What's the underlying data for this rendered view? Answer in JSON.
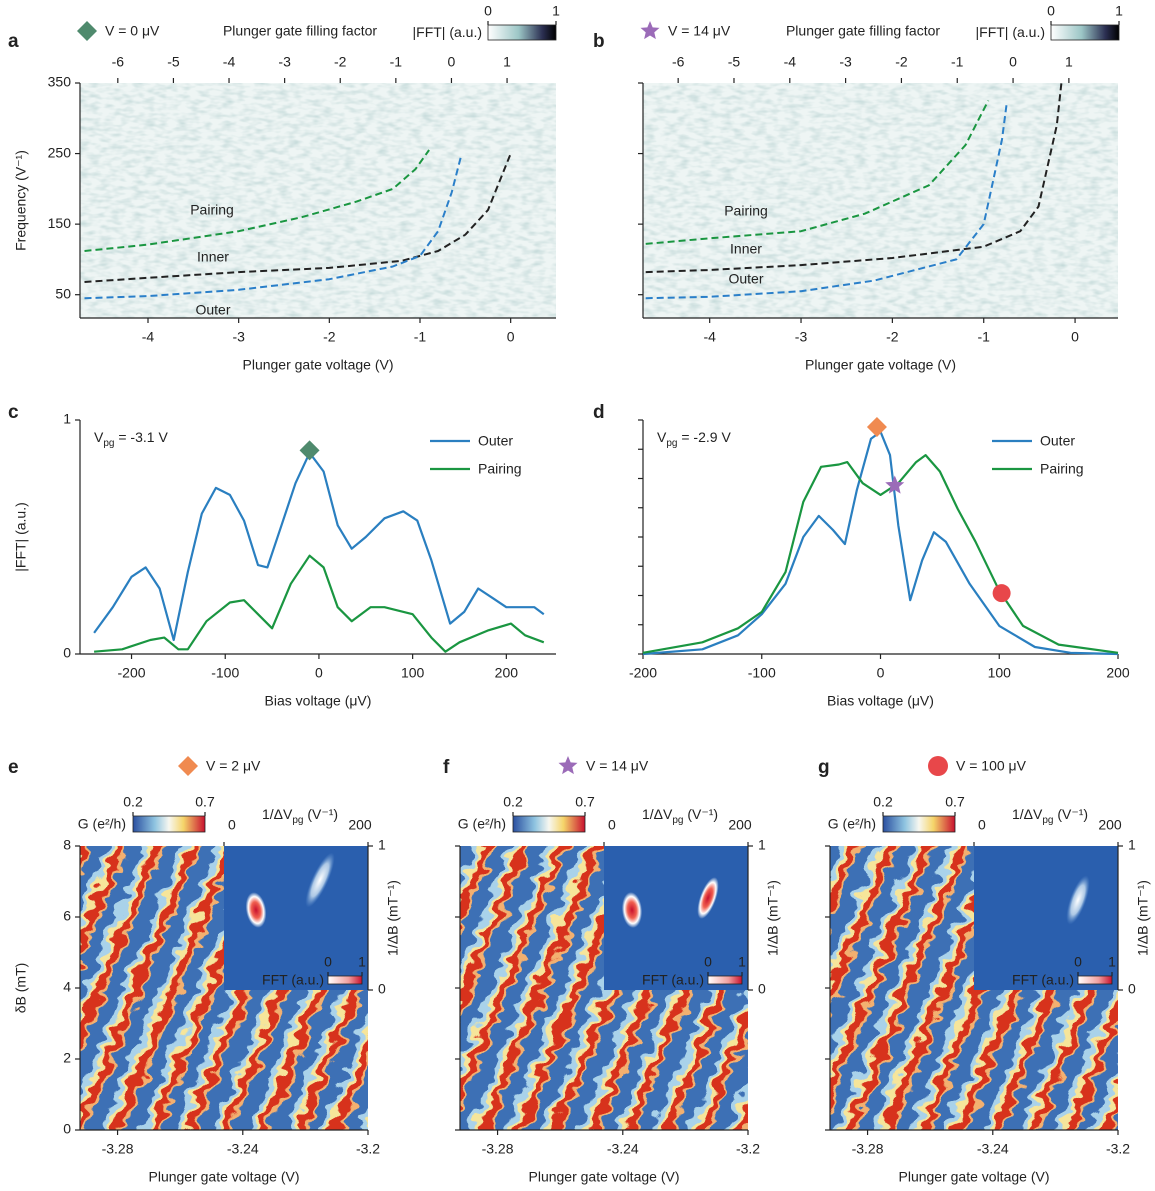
{
  "chart_data": [
    {
      "type": "line",
      "label": "a",
      "marker": "diamond",
      "marker_color": "#4f8a6d",
      "marker_label": "V = 0 μV",
      "title": "Plunger gate filling factor",
      "colorbar": {
        "label": "|FFT| (a.u.)",
        "ticks": [
          0,
          1
        ]
      },
      "xlabel": "Plunger gate voltage (V)",
      "ylabel": "Frequency (V⁻¹)",
      "xlim": [
        -4.75,
        0.5
      ],
      "xticks": [
        -4,
        -3,
        -2,
        -1,
        0
      ],
      "x2lim": [
        -6.68,
        1.88
      ],
      "x2ticks": [
        -6,
        -5,
        -4,
        -3,
        -2,
        -1,
        0,
        1
      ],
      "ylim": [
        17,
        350
      ],
      "yticks": [
        50,
        150,
        250,
        350
      ],
      "ytick_labels": true,
      "dashed": true,
      "series": [
        {
          "name": "Pairing",
          "color": "#1a9641",
          "x": [
            -4.7,
            -4,
            -3,
            -2.3,
            -1.7,
            -1.3,
            -1.05,
            -0.9
          ],
          "values": [
            112,
            121,
            140,
            160,
            182,
            200,
            228,
            255
          ]
        },
        {
          "name": "Inner",
          "color": "#222222",
          "x": [
            -4.7,
            -4,
            -3,
            -2,
            -1.2,
            -0.8,
            -0.5,
            -0.25,
            0
          ],
          "values": [
            68,
            74,
            82,
            88,
            98,
            112,
            135,
            170,
            250
          ]
        },
        {
          "name": "Outer",
          "color": "#2a7fc9",
          "x": [
            -4.7,
            -4,
            -3,
            -2,
            -1.3,
            -1,
            -0.8,
            -0.65,
            -0.55
          ],
          "values": [
            45,
            48,
            57,
            72,
            90,
            105,
            140,
            195,
            245
          ]
        }
      ]
    },
    {
      "type": "line",
      "label": "b",
      "marker": "star",
      "marker_color": "#9b6bb8",
      "marker_label": "V = 14 μV",
      "title": "Plunger gate filling factor",
      "colorbar": {
        "label": "|FFT| (a.u.)",
        "ticks": [
          0,
          1
        ]
      },
      "xlabel": "Plunger gate voltage (V)",
      "xlim": [
        -4.73,
        0.47
      ],
      "xticks": [
        -4,
        -3,
        -2,
        -1,
        0
      ],
      "x2lim": [
        -6.63,
        1.88
      ],
      "x2ticks": [
        -6,
        -5,
        -4,
        -3,
        -2,
        -1,
        0,
        1
      ],
      "ylim": [
        17,
        350
      ],
      "yticks": [
        50,
        150,
        250,
        350
      ],
      "ytick_labels": false,
      "dashed": true,
      "series": [
        {
          "name": "Pairing",
          "color": "#1a9641",
          "x": [
            -4.7,
            -4,
            -3,
            -2.3,
            -1.6,
            -1.2,
            -0.95
          ],
          "values": [
            122,
            130,
            140,
            165,
            205,
            262,
            325
          ]
        },
        {
          "name": "Inner",
          "color": "#222222",
          "x": [
            -4.7,
            -4,
            -3,
            -2,
            -1,
            -0.6,
            -0.4,
            -0.2,
            -0.15
          ],
          "values": [
            82,
            85,
            92,
            102,
            118,
            140,
            175,
            290,
            350
          ]
        },
        {
          "name": "Outer",
          "color": "#2a7fc9",
          "x": [
            -4.7,
            -4,
            -3,
            -2.2,
            -1.3,
            -1,
            -0.9,
            -0.8,
            -0.75
          ],
          "values": [
            45,
            47,
            55,
            70,
            100,
            150,
            210,
            270,
            320
          ]
        }
      ]
    },
    {
      "type": "line",
      "label": "c",
      "annotation": [
        "V",
        "pg",
        " = -3.1 V"
      ],
      "legend": "upper right",
      "xlabel": "Bias voltage (μV)",
      "ylabel": "|FFT| (a.u.)",
      "xlim": [
        -255,
        253
      ],
      "xticks": [
        -200,
        -100,
        0,
        100,
        200
      ],
      "ylim": [
        0,
        1
      ],
      "yticks": [
        0,
        1
      ],
      "ytick_labels": true,
      "dashed": false,
      "series": [
        {
          "name": "Outer",
          "color": "#2a7fc0",
          "x": [
            -240,
            -220,
            -200,
            -185,
            -170,
            -155,
            -140,
            -125,
            -110,
            -95,
            -80,
            -65,
            -55,
            -40,
            -25,
            -10,
            5,
            20,
            35,
            50,
            70,
            90,
            105,
            120,
            140,
            155,
            170,
            185,
            200,
            215,
            230,
            240
          ],
          "values": [
            0.09,
            0.2,
            0.33,
            0.37,
            0.28,
            0.06,
            0.35,
            0.6,
            0.71,
            0.68,
            0.57,
            0.38,
            0.37,
            0.55,
            0.73,
            0.86,
            0.78,
            0.55,
            0.45,
            0.5,
            0.58,
            0.61,
            0.57,
            0.4,
            0.13,
            0.18,
            0.28,
            0.24,
            0.2,
            0.2,
            0.2,
            0.17
          ]
        },
        {
          "name": "Pairing",
          "color": "#1a9641",
          "x": [
            -240,
            -210,
            -180,
            -165,
            -150,
            -140,
            -120,
            -95,
            -80,
            -65,
            -50,
            -30,
            -10,
            5,
            20,
            35,
            55,
            70,
            100,
            120,
            135,
            150,
            180,
            205,
            220,
            240
          ],
          "values": [
            0.01,
            0.02,
            0.06,
            0.07,
            0.02,
            0.02,
            0.14,
            0.22,
            0.23,
            0.17,
            0.11,
            0.3,
            0.42,
            0.37,
            0.2,
            0.14,
            0.2,
            0.2,
            0.17,
            0.07,
            0.01,
            0.05,
            0.1,
            0.13,
            0.08,
            0.05
          ]
        }
      ],
      "points": [
        {
          "x": -10,
          "y": 0.87,
          "marker": "diamond",
          "color": "#4f8a6d"
        }
      ]
    },
    {
      "type": "line",
      "label": "d",
      "annotation": [
        "V",
        "pg",
        " = -2.9 V"
      ],
      "legend": "upper right",
      "xlabel": "Bias voltage (μV)",
      "xlim": [
        -200,
        200
      ],
      "xticks": [
        -200,
        -100,
        0,
        100,
        200
      ],
      "ylim": [
        0,
        1
      ],
      "yticks": [
        0,
        0.125,
        0.25,
        0.375,
        0.5,
        0.625,
        0.75,
        0.875,
        1
      ],
      "ytick_labels": false,
      "dashed": false,
      "series": [
        {
          "name": "Outer",
          "color": "#2a7fc0",
          "x": [
            -200,
            -150,
            -120,
            -100,
            -80,
            -65,
            -52,
            -40,
            -30,
            -20,
            -8,
            0,
            8,
            15,
            25,
            35,
            45,
            55,
            75,
            100,
            130,
            160,
            200
          ],
          "values": [
            0,
            0.02,
            0.08,
            0.17,
            0.3,
            0.5,
            0.59,
            0.53,
            0.47,
            0.7,
            0.92,
            0.95,
            0.85,
            0.55,
            0.23,
            0.4,
            0.52,
            0.48,
            0.3,
            0.12,
            0.03,
            0.005,
            0
          ]
        },
        {
          "name": "Pairing",
          "color": "#1a9641",
          "x": [
            -200,
            -150,
            -120,
            -100,
            -80,
            -65,
            -50,
            -35,
            -28,
            -15,
            0,
            15,
            30,
            38,
            50,
            65,
            80,
            100,
            120,
            150,
            200
          ],
          "values": [
            0.005,
            0.05,
            0.11,
            0.18,
            0.35,
            0.65,
            0.8,
            0.81,
            0.82,
            0.73,
            0.68,
            0.73,
            0.82,
            0.85,
            0.78,
            0.62,
            0.48,
            0.27,
            0.12,
            0.04,
            0.005
          ]
        }
      ],
      "points": [
        {
          "x": -3,
          "y": 0.97,
          "marker": "diamond",
          "color": "#f08a50"
        },
        {
          "x": 12,
          "y": 0.72,
          "marker": "star",
          "color": "#9b6bb8"
        },
        {
          "x": 102,
          "y": 0.26,
          "marker": "circle",
          "color": "#e8474a"
        }
      ]
    },
    {
      "type": "heatmap",
      "label": "e",
      "marker": "diamond",
      "marker_color": "#f08a50",
      "marker_label": "V = 2 μV",
      "colorbar": {
        "label": "G (e²/h)",
        "ticks": [
          0.2,
          0.7
        ]
      },
      "xlabel": "Plunger gate voltage (V)",
      "ylabel": "δB (mT)",
      "xlim": [
        -3.292,
        -3.2
      ],
      "xticks": [
        -3.28,
        -3.24,
        -3.2
      ],
      "ylim": [
        0,
        8
      ],
      "yticks": [
        0,
        2,
        4,
        6,
        8
      ],
      "ytick_labels": true,
      "inset": {
        "xlabel": [
          "1/ΔV",
          "pg",
          " (V⁻¹)"
        ],
        "xlim": [
          0,
          200
        ],
        "xticks": [
          0,
          200
        ],
        "ylabel": "1/ΔB (mT⁻¹)",
        "ylim": [
          0,
          1
        ],
        "yticks": [
          0,
          1
        ],
        "colorbar": {
          "label": "FFT (a.u.)",
          "ticks": [
            0,
            1
          ]
        }
      }
    },
    {
      "type": "heatmap",
      "label": "f",
      "marker": "star",
      "marker_color": "#9b6bb8",
      "marker_label": "V = 14 μV",
      "colorbar": {
        "label": "G (e²/h)",
        "ticks": [
          0.2,
          0.7
        ]
      },
      "xlabel": "Plunger gate voltage (V)",
      "xlim": [
        -3.292,
        -3.2
      ],
      "xticks": [
        -3.28,
        -3.24,
        -3.2
      ],
      "ylim": [
        0,
        8
      ],
      "yticks": [
        0,
        2,
        4,
        6,
        8
      ],
      "ytick_labels": false,
      "inset": {
        "xlabel": [
          "1/ΔV",
          "pg",
          " (V⁻¹)"
        ],
        "xlim": [
          0,
          200
        ],
        "xticks": [
          0,
          200
        ],
        "ylabel": "1/ΔB (mT⁻¹)",
        "ylim": [
          0,
          1
        ],
        "yticks": [
          0,
          1
        ],
        "colorbar": {
          "label": "FFT (a.u.)",
          "ticks": [
            0,
            1
          ]
        }
      }
    },
    {
      "type": "heatmap",
      "label": "g",
      "marker": "circle",
      "marker_color": "#e8474a",
      "marker_label": "V = 100 μV",
      "colorbar": {
        "label": "G (e²/h)",
        "ticks": [
          0.2,
          0.7
        ]
      },
      "xlabel": "Plunger gate voltage (V)",
      "xlim": [
        -3.292,
        -3.2
      ],
      "xticks": [
        -3.28,
        -3.24,
        -3.2
      ],
      "ylim": [
        0,
        8
      ],
      "yticks": [
        0,
        2,
        4,
        6,
        8
      ],
      "ytick_labels": false,
      "inset": {
        "xlabel": [
          "1/ΔV",
          "pg",
          " (V⁻¹)"
        ],
        "xlim": [
          0,
          200
        ],
        "xticks": [
          0,
          200
        ],
        "ylabel": "1/ΔB (mT⁻¹)",
        "ylim": [
          0,
          1
        ],
        "yticks": [
          0,
          1
        ],
        "colorbar": {
          "label": "FFT (a.u.)",
          "ticks": [
            0,
            1
          ]
        }
      }
    }
  ]
}
